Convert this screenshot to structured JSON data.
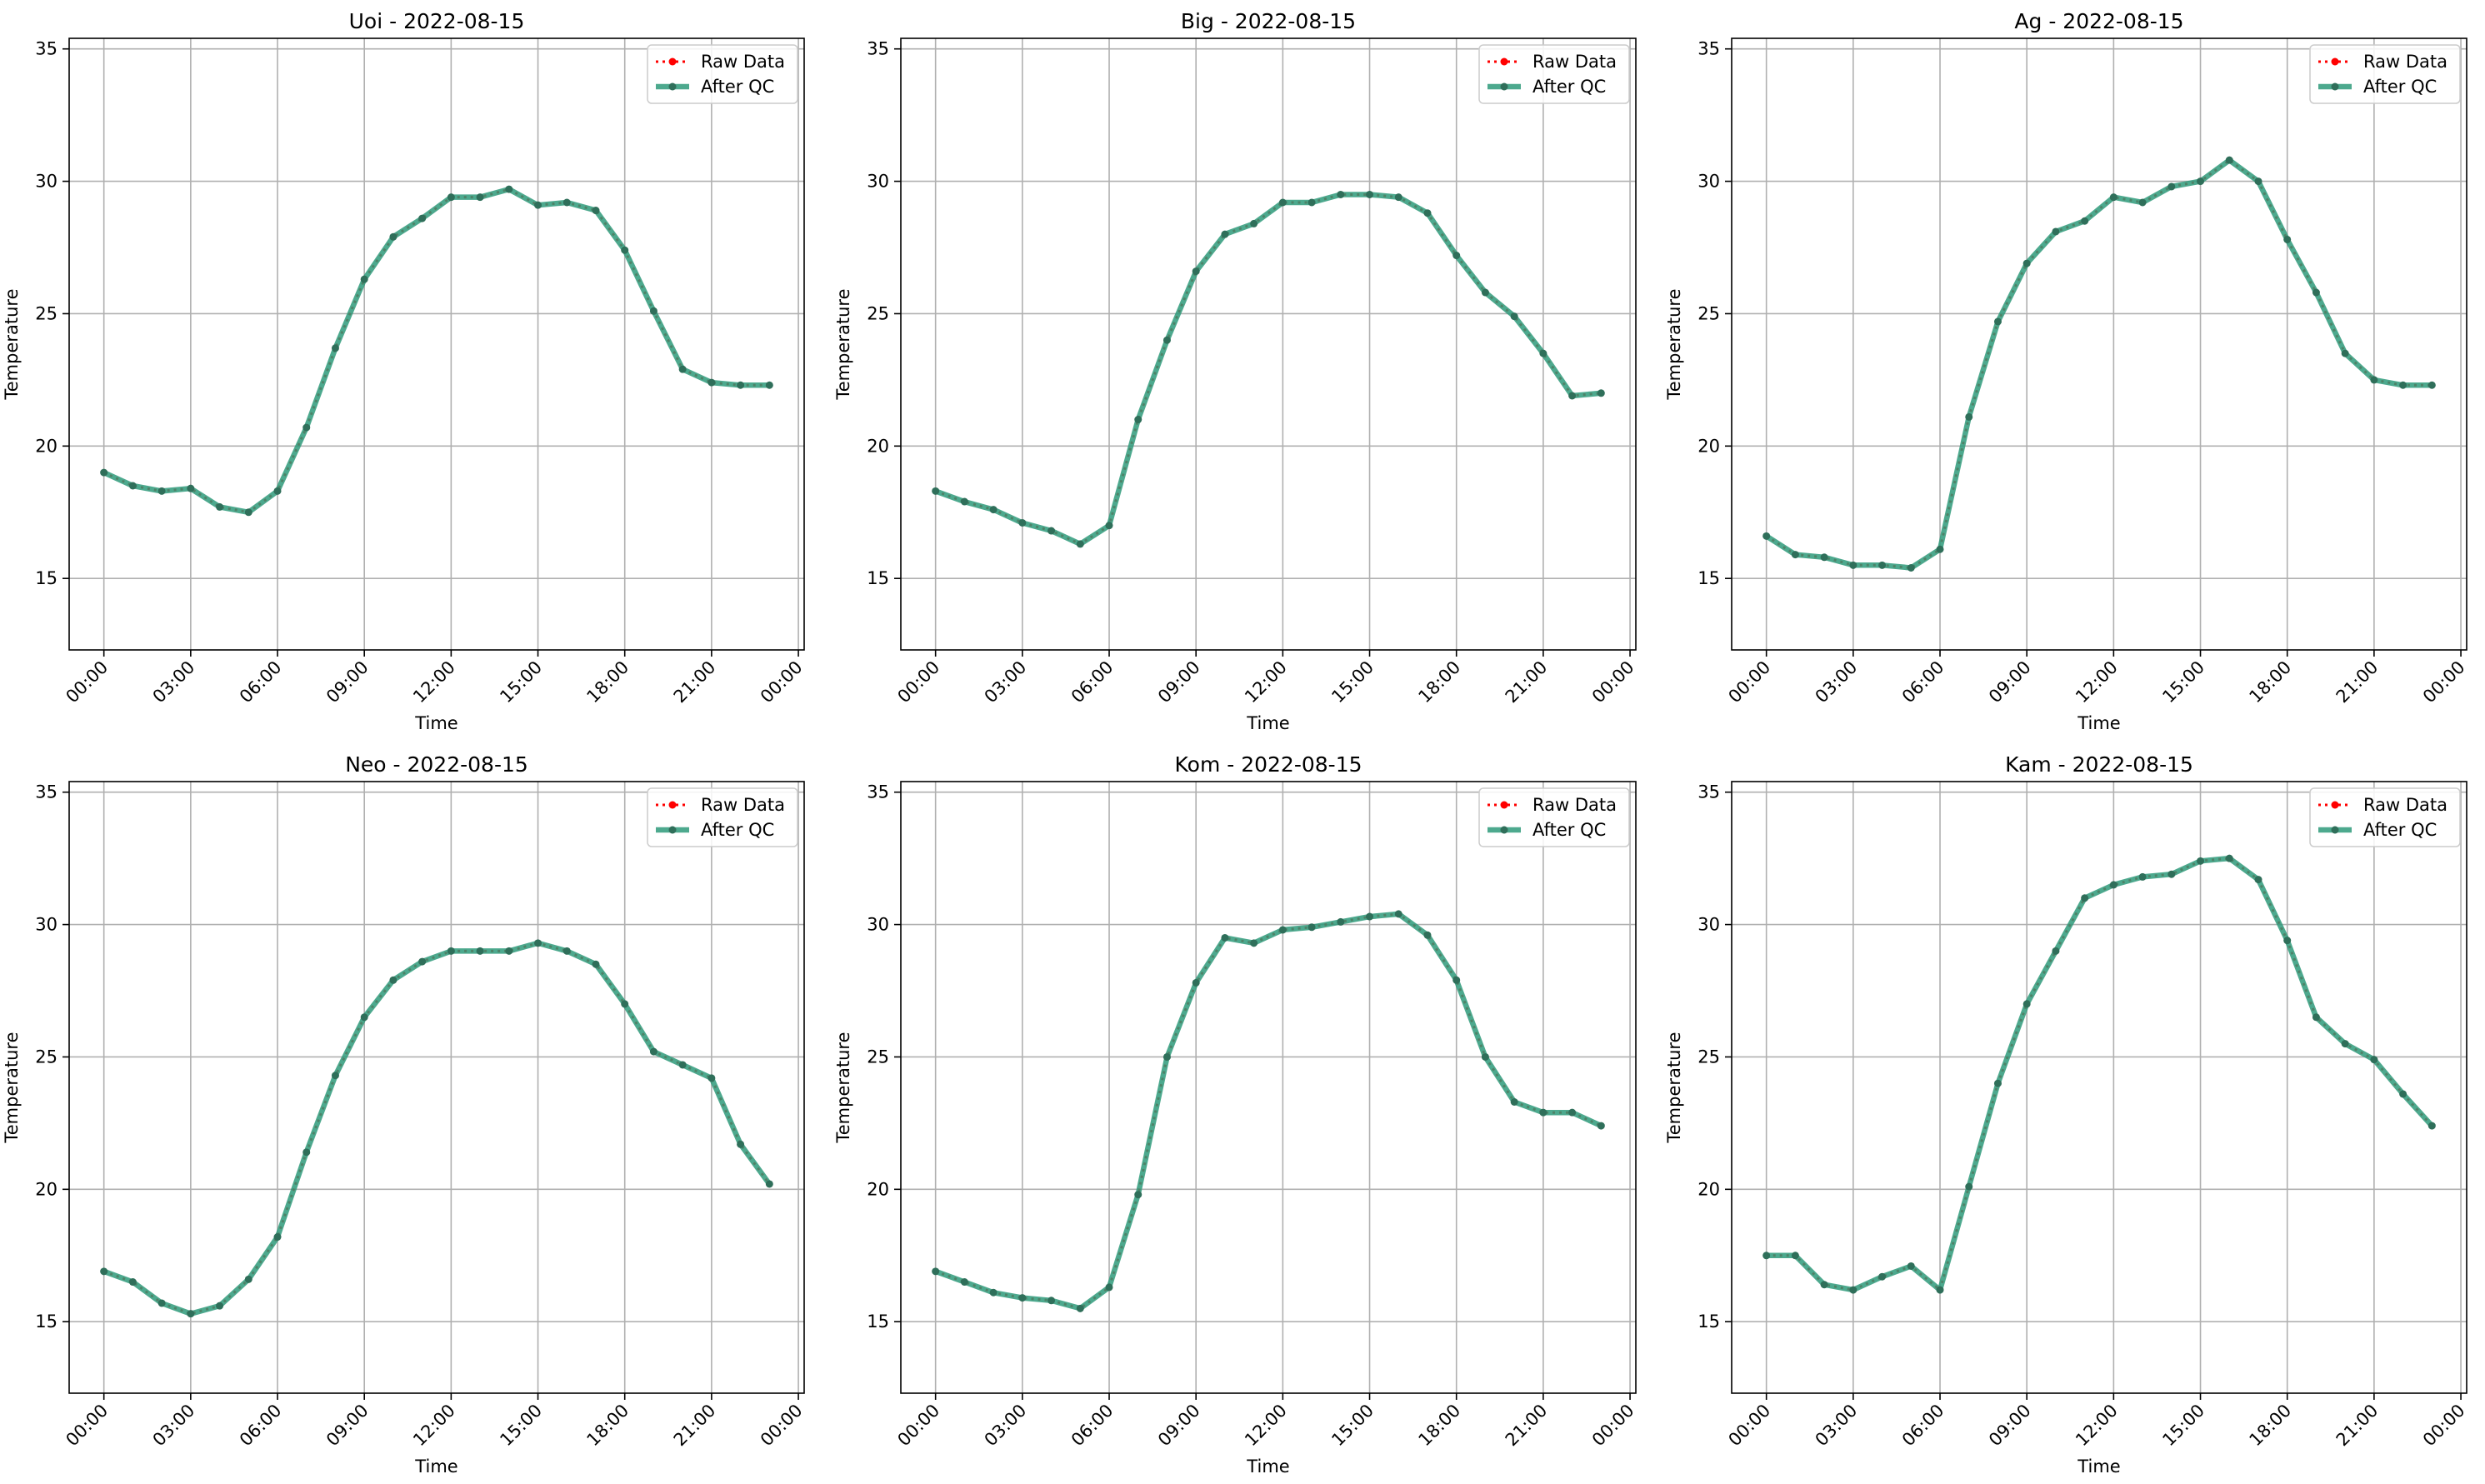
{
  "figure": {
    "legend_labels": [
      "Raw Data",
      "After QC"
    ],
    "colors": {
      "raw": "#ff0000",
      "qc": "#2e9a7a",
      "qc_dot": "#2f6f5a",
      "grid": "#b0b0b0"
    },
    "x_tick_labels": [
      "00:00",
      "03:00",
      "06:00",
      "09:00",
      "12:00",
      "15:00",
      "18:00",
      "21:00",
      "00:00"
    ],
    "y_ticks": [
      15,
      20,
      25,
      30,
      35
    ],
    "xlabel": "Time",
    "ylabel": "Temperature"
  },
  "chart_data": [
    {
      "type": "line",
      "title": "Uoi - 2022-08-15",
      "xlabel": "Time",
      "ylabel": "Temperature",
      "x_unit": "hour",
      "xlim": [
        -1.2,
        24.2
      ],
      "ylim": [
        12.3,
        35.4
      ],
      "grid": true,
      "legend": "top-right",
      "series": [
        {
          "name": "Raw Data",
          "x": [
            0,
            1,
            2,
            3,
            4,
            5,
            6,
            7,
            8,
            9,
            10,
            11,
            12,
            13,
            14,
            15,
            16,
            17,
            18,
            19,
            20,
            21,
            22,
            23
          ],
          "values": [
            19.0,
            18.5,
            18.3,
            18.4,
            17.7,
            17.5,
            18.3,
            20.7,
            23.7,
            26.3,
            27.9,
            28.6,
            29.4,
            29.4,
            29.7,
            29.1,
            29.2,
            28.9,
            27.4,
            25.1,
            22.9,
            22.4,
            22.3,
            22.3
          ]
        },
        {
          "name": "After QC",
          "x": [
            0,
            1,
            2,
            3,
            4,
            5,
            6,
            7,
            8,
            9,
            10,
            11,
            12,
            13,
            14,
            15,
            16,
            17,
            18,
            19,
            20,
            21,
            22,
            23
          ],
          "values": [
            19.0,
            18.5,
            18.3,
            18.4,
            17.7,
            17.5,
            18.3,
            20.7,
            23.7,
            26.3,
            27.9,
            28.6,
            29.4,
            29.4,
            29.7,
            29.1,
            29.2,
            28.9,
            27.4,
            25.1,
            22.9,
            22.4,
            22.3,
            22.3
          ]
        }
      ]
    },
    {
      "type": "line",
      "title": "Big - 2022-08-15",
      "xlabel": "Time",
      "ylabel": "Temperature",
      "x_unit": "hour",
      "xlim": [
        -1.2,
        24.2
      ],
      "ylim": [
        12.3,
        35.4
      ],
      "grid": true,
      "legend": "top-right",
      "series": [
        {
          "name": "Raw Data",
          "x": [
            0,
            1,
            2,
            3,
            4,
            5,
            6,
            7,
            8,
            9,
            10,
            11,
            12,
            13,
            14,
            15,
            16,
            17,
            18,
            19,
            20,
            21,
            22,
            23
          ],
          "values": [
            18.3,
            17.9,
            17.6,
            17.1,
            16.8,
            16.3,
            17.0,
            21.0,
            24.0,
            26.6,
            28.0,
            28.4,
            29.2,
            29.2,
            29.5,
            29.5,
            29.4,
            28.8,
            27.2,
            25.8,
            24.9,
            23.5,
            21.9,
            22.0
          ]
        },
        {
          "name": "After QC",
          "x": [
            0,
            1,
            2,
            3,
            4,
            5,
            6,
            7,
            8,
            9,
            10,
            11,
            12,
            13,
            14,
            15,
            16,
            17,
            18,
            19,
            20,
            21,
            22,
            23
          ],
          "values": [
            18.3,
            17.9,
            17.6,
            17.1,
            16.8,
            16.3,
            17.0,
            21.0,
            24.0,
            26.6,
            28.0,
            28.4,
            29.2,
            29.2,
            29.5,
            29.5,
            29.4,
            28.8,
            27.2,
            25.8,
            24.9,
            23.5,
            21.9,
            22.0
          ]
        }
      ]
    },
    {
      "type": "line",
      "title": "Ag - 2022-08-15",
      "xlabel": "Time",
      "ylabel": "Temperature",
      "x_unit": "hour",
      "xlim": [
        -1.2,
        24.2
      ],
      "ylim": [
        12.3,
        35.4
      ],
      "grid": true,
      "legend": "top-right",
      "series": [
        {
          "name": "Raw Data",
          "x": [
            0,
            1,
            2,
            3,
            4,
            5,
            6,
            7,
            8,
            9,
            10,
            11,
            12,
            13,
            14,
            15,
            16,
            17,
            18,
            19,
            20,
            21,
            22,
            23
          ],
          "values": [
            16.6,
            15.9,
            15.8,
            15.5,
            15.5,
            15.4,
            16.1,
            21.1,
            24.7,
            26.9,
            28.1,
            28.5,
            29.4,
            29.2,
            29.8,
            30.0,
            30.8,
            30.0,
            27.8,
            25.8,
            23.5,
            22.5,
            22.3,
            22.3
          ]
        },
        {
          "name": "After QC",
          "x": [
            0,
            1,
            2,
            3,
            4,
            5,
            6,
            7,
            8,
            9,
            10,
            11,
            12,
            13,
            14,
            15,
            16,
            17,
            18,
            19,
            20,
            21,
            22,
            23
          ],
          "values": [
            16.6,
            15.9,
            15.8,
            15.5,
            15.5,
            15.4,
            16.1,
            21.1,
            24.7,
            26.9,
            28.1,
            28.5,
            29.4,
            29.2,
            29.8,
            30.0,
            30.8,
            30.0,
            27.8,
            25.8,
            23.5,
            22.5,
            22.3,
            22.3
          ]
        }
      ]
    },
    {
      "type": "line",
      "title": "Neo - 2022-08-15",
      "xlabel": "Time",
      "ylabel": "Temperature",
      "x_unit": "hour",
      "xlim": [
        -1.2,
        24.2
      ],
      "ylim": [
        12.3,
        35.4
      ],
      "grid": true,
      "legend": "top-right",
      "series": [
        {
          "name": "Raw Data",
          "x": [
            0,
            1,
            2,
            3,
            4,
            5,
            6,
            7,
            8,
            9,
            10,
            11,
            12,
            13,
            14,
            15,
            16,
            17,
            18,
            19,
            20,
            21,
            22,
            23
          ],
          "values": [
            16.9,
            16.5,
            15.7,
            15.3,
            15.6,
            16.6,
            18.2,
            21.4,
            24.3,
            26.5,
            27.9,
            28.6,
            29.0,
            29.0,
            29.0,
            29.3,
            29.0,
            28.5,
            27.0,
            25.2,
            24.7,
            24.2,
            21.7,
            20.2
          ]
        },
        {
          "name": "After QC",
          "x": [
            0,
            1,
            2,
            3,
            4,
            5,
            6,
            7,
            8,
            9,
            10,
            11,
            12,
            13,
            14,
            15,
            16,
            17,
            18,
            19,
            20,
            21,
            22,
            23
          ],
          "values": [
            16.9,
            16.5,
            15.7,
            15.3,
            15.6,
            16.6,
            18.2,
            21.4,
            24.3,
            26.5,
            27.9,
            28.6,
            29.0,
            29.0,
            29.0,
            29.3,
            29.0,
            28.5,
            27.0,
            25.2,
            24.7,
            24.2,
            21.7,
            20.2
          ]
        }
      ]
    },
    {
      "type": "line",
      "title": "Kom - 2022-08-15",
      "xlabel": "Time",
      "ylabel": "Temperature",
      "x_unit": "hour",
      "xlim": [
        -1.2,
        24.2
      ],
      "ylim": [
        12.3,
        35.4
      ],
      "grid": true,
      "legend": "top-right",
      "series": [
        {
          "name": "Raw Data",
          "x": [
            0,
            1,
            2,
            3,
            4,
            5,
            6,
            7,
            8,
            9,
            10,
            11,
            12,
            13,
            14,
            15,
            16,
            17,
            18,
            19,
            20,
            21,
            22,
            23
          ],
          "values": [
            16.9,
            16.5,
            16.1,
            15.9,
            15.8,
            15.5,
            16.3,
            19.8,
            25.0,
            27.8,
            29.5,
            29.3,
            29.8,
            29.9,
            30.1,
            30.3,
            30.4,
            29.6,
            27.9,
            25.0,
            23.3,
            22.9,
            22.9,
            22.4
          ]
        },
        {
          "name": "After QC",
          "x": [
            0,
            1,
            2,
            3,
            4,
            5,
            6,
            7,
            8,
            9,
            10,
            11,
            12,
            13,
            14,
            15,
            16,
            17,
            18,
            19,
            20,
            21,
            22,
            23
          ],
          "values": [
            16.9,
            16.5,
            16.1,
            15.9,
            15.8,
            15.5,
            16.3,
            19.8,
            25.0,
            27.8,
            29.5,
            29.3,
            29.8,
            29.9,
            30.1,
            30.3,
            30.4,
            29.6,
            27.9,
            25.0,
            23.3,
            22.9,
            22.9,
            22.4
          ]
        }
      ]
    },
    {
      "type": "line",
      "title": "Kam - 2022-08-15",
      "xlabel": "Time",
      "ylabel": "Temperature",
      "x_unit": "hour",
      "xlim": [
        -1.2,
        24.2
      ],
      "ylim": [
        12.3,
        35.4
      ],
      "grid": true,
      "legend": "top-right",
      "series": [
        {
          "name": "Raw Data",
          "x": [
            0,
            1,
            2,
            3,
            4,
            5,
            6,
            7,
            8,
            9,
            10,
            11,
            12,
            13,
            14,
            15,
            16,
            17,
            18,
            19,
            20,
            21,
            22,
            23
          ],
          "values": [
            17.5,
            17.5,
            16.4,
            16.2,
            16.7,
            17.1,
            16.2,
            20.1,
            24.0,
            27.0,
            29.0,
            31.0,
            31.5,
            31.8,
            31.9,
            32.4,
            32.5,
            31.7,
            29.4,
            26.5,
            25.5,
            24.9,
            23.6,
            22.4
          ]
        },
        {
          "name": "After QC",
          "x": [
            0,
            1,
            2,
            3,
            4,
            5,
            6,
            7,
            8,
            9,
            10,
            11,
            12,
            13,
            14,
            15,
            16,
            17,
            18,
            19,
            20,
            21,
            22,
            23
          ],
          "values": [
            17.5,
            17.5,
            16.4,
            16.2,
            16.7,
            17.1,
            16.2,
            20.1,
            24.0,
            27.0,
            29.0,
            31.0,
            31.5,
            31.8,
            31.9,
            32.4,
            32.5,
            31.7,
            29.4,
            26.5,
            25.5,
            24.9,
            23.6,
            22.4
          ]
        }
      ]
    }
  ]
}
